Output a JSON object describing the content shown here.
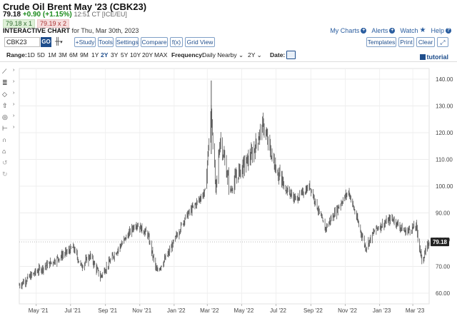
{
  "header": {
    "title": "Crude Oil Brent May '23 (CBK23)",
    "last": "79.18",
    "change": "+0.90 (+1.15%)",
    "meta": "12:51 CT [ICE/EU]",
    "bid": "79.18 x 1",
    "ask": "79.19 x 2",
    "chart_kind": "INTERACTIVE CHART",
    "chart_date": "for Thu, Mar 30th, 2023"
  },
  "toplinks": {
    "my_charts": "My Charts",
    "alerts": "Alerts",
    "watch": "Watch",
    "help": "Help"
  },
  "toolbar": {
    "symbol": "CBK23",
    "go": "GO",
    "study": "+Study",
    "tools": "Tools",
    "settings": "Settings",
    "compare": "Compare",
    "fx": "f(x)",
    "grid_view": "Grid View",
    "templates": "Templates",
    "print": "Print",
    "clear": "Clear",
    "tutorial": "tutorial"
  },
  "rangebar": {
    "range_label": "Range:",
    "ranges": [
      "1D",
      "5D",
      "1M",
      "3M",
      "6M",
      "9M",
      "1Y",
      "2Y",
      "3Y",
      "5Y",
      "10Y",
      "20Y",
      "MAX"
    ],
    "active_range": "2Y",
    "frequency_label": "Frequency:",
    "frequency_value": "Daily Nearby",
    "period_value": "2Y",
    "date_label": "Date:"
  },
  "chart_data": {
    "type": "bar",
    "subtype": "ohlc",
    "x_tick_labels": [
      "May '21",
      "Jul '21",
      "Sep '21",
      "Nov '21",
      "Jan '22",
      "Mar '22",
      "May '22",
      "Jul '22",
      "Sep '22",
      "Nov '22",
      "Jan '23",
      "Mar '23"
    ],
    "y_tick_labels": [
      "140.00",
      "130.00",
      "120.00",
      "110.00",
      "100.00",
      "90.00",
      "80.00",
      "70.00",
      "60.00"
    ],
    "ylim": [
      56,
      144
    ],
    "last_price_label": "79.18",
    "last_price": 79.18,
    "grid": true,
    "color": "#555555",
    "key_points": [
      {
        "date": "2021-04-01",
        "close": 63
      },
      {
        "date": "2021-05-01",
        "close": 68
      },
      {
        "date": "2021-06-01",
        "close": 72
      },
      {
        "date": "2021-07-06",
        "close": 77
      },
      {
        "date": "2021-07-20",
        "close": 70
      },
      {
        "date": "2021-08-05",
        "close": 74
      },
      {
        "date": "2021-08-23",
        "close": 66
      },
      {
        "date": "2021-09-15",
        "close": 74
      },
      {
        "date": "2021-10-25",
        "close": 86
      },
      {
        "date": "2021-11-15",
        "close": 82
      },
      {
        "date": "2021-12-01",
        "close": 68
      },
      {
        "date": "2021-12-20",
        "close": 74
      },
      {
        "date": "2022-01-20",
        "close": 88
      },
      {
        "date": "2022-02-25",
        "close": 98
      },
      {
        "date": "2022-03-08",
        "close": 128
      },
      {
        "date": "2022-03-16",
        "close": 98
      },
      {
        "date": "2022-03-24",
        "close": 118
      },
      {
        "date": "2022-04-11",
        "close": 98
      },
      {
        "date": "2022-04-25",
        "close": 105
      },
      {
        "date": "2022-05-20",
        "close": 112
      },
      {
        "date": "2022-06-08",
        "close": 123
      },
      {
        "date": "2022-06-25",
        "close": 110
      },
      {
        "date": "2022-07-15",
        "close": 100
      },
      {
        "date": "2022-08-05",
        "close": 95
      },
      {
        "date": "2022-08-30",
        "close": 100
      },
      {
        "date": "2022-09-26",
        "close": 84
      },
      {
        "date": "2022-10-25",
        "close": 94
      },
      {
        "date": "2022-11-07",
        "close": 98
      },
      {
        "date": "2022-12-07",
        "close": 77
      },
      {
        "date": "2022-12-25",
        "close": 84
      },
      {
        "date": "2023-01-23",
        "close": 88
      },
      {
        "date": "2023-02-15",
        "close": 83
      },
      {
        "date": "2023-03-07",
        "close": 85
      },
      {
        "date": "2023-03-17",
        "close": 72
      },
      {
        "date": "2023-03-30",
        "close": 79.18
      }
    ]
  }
}
